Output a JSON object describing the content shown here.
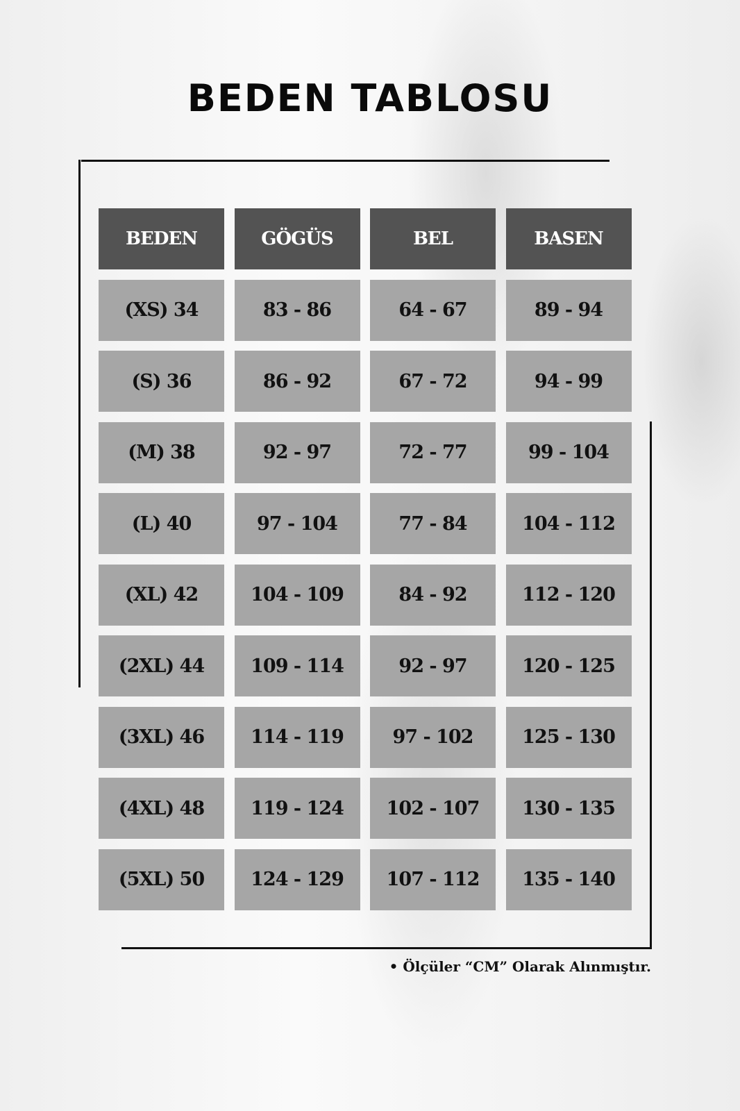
{
  "title": "BEDEN TABLOSU",
  "table": {
    "headers": [
      "BEDEN",
      "GÖGÜS",
      "BEL",
      "BASEN"
    ],
    "rows": [
      [
        "(XS) 34",
        "83 - 86",
        "64 - 67",
        "89 - 94"
      ],
      [
        "(S) 36",
        "86 - 92",
        "67 - 72",
        "94 - 99"
      ],
      [
        "(M) 38",
        "92 - 97",
        "72 - 77",
        "99 - 104"
      ],
      [
        "(L) 40",
        "97 - 104",
        "77 - 84",
        "104 - 112"
      ],
      [
        "(XL) 42",
        "104 - 109",
        "84 - 92",
        "112 - 120"
      ],
      [
        "(2XL) 44",
        "109 - 114",
        "92 - 97",
        "120 - 125"
      ],
      [
        "(3XL) 46",
        "114 - 119",
        "97 - 102",
        "125 - 130"
      ],
      [
        "(4XL) 48",
        "119 - 124",
        "102 - 107",
        "130 - 135"
      ],
      [
        "(5XL) 50",
        "124 - 129",
        "107 - 112",
        "135 - 140"
      ]
    ]
  },
  "note": "• Ölçüler “CM” Olarak Alınmıştır.",
  "colors": {
    "header_bg": "#535353",
    "cell_bg": "#a6a6a6",
    "text": "#111111"
  }
}
